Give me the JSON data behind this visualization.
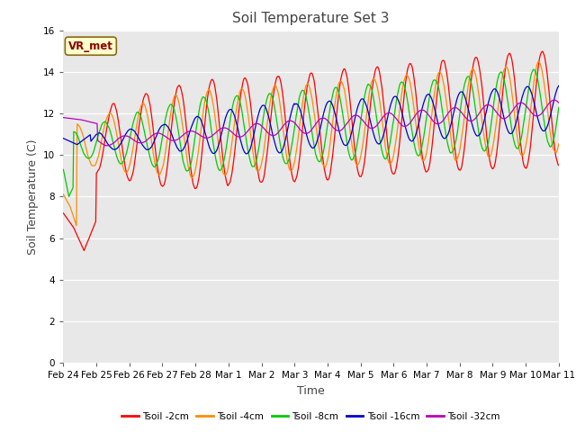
{
  "title": "Soil Temperature Set 3",
  "xlabel": "Time",
  "ylabel": "Soil Temperature (C)",
  "ylim": [
    0,
    16
  ],
  "yticks": [
    0,
    2,
    4,
    6,
    8,
    10,
    12,
    14,
    16
  ],
  "bg_color": "#e8e8e8",
  "fig_color": "#ffffff",
  "legend_label": "VR_met",
  "series_colors": [
    "#ff0000",
    "#ff8c00",
    "#00cc00",
    "#0000cc",
    "#bb00bb"
  ],
  "series_labels": [
    "Tsoil -2cm",
    "Tsoil -4cm",
    "Tsoil -8cm",
    "Tsoil -16cm",
    "Tsoil -32cm"
  ],
  "date_labels": [
    "Feb 24",
    "Feb 25",
    "Feb 26",
    "Feb 27",
    "Feb 28",
    "Mar 1",
    "Mar 2",
    "Mar 3",
    "Mar 4",
    "Mar 5",
    "Mar 6",
    "Mar 7",
    "Mar 8",
    "Mar 9",
    "Mar 10",
    "Mar 11"
  ],
  "n_points": 720
}
